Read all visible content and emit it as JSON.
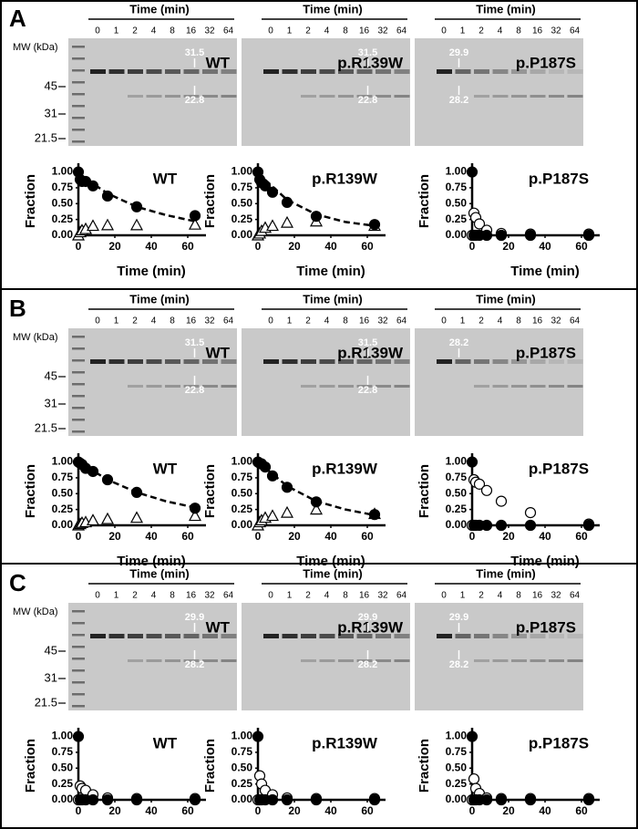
{
  "panels": [
    {
      "label": "A",
      "mw": {
        "title": "MW (kDa)",
        "markers": [
          "45",
          "31",
          "21.5"
        ]
      },
      "gels": [
        {
          "header": "Time (min)",
          "lanes": [
            "0",
            "1",
            "2",
            "4",
            "8",
            "16",
            "32",
            "64"
          ],
          "name": "WT",
          "bands": [
            "31.5",
            "22.8"
          ]
        },
        {
          "header": "Time (min)",
          "lanes": [
            "0",
            "1",
            "2",
            "4",
            "8",
            "16",
            "32",
            "64"
          ],
          "name": "p.R139W",
          "bands": [
            "31.5",
            "22.8"
          ]
        },
        {
          "header": "Time (min)",
          "lanes": [
            "0",
            "1",
            "2",
            "4",
            "8",
            "16",
            "32",
            "64"
          ],
          "name": "p.P187S",
          "bands": [
            "29.9",
            "28.2"
          ]
        }
      ]
    },
    {
      "label": "B",
      "mw": {
        "title": "MW (kDa)",
        "markers": [
          "45",
          "31",
          "21.5"
        ]
      },
      "gels": [
        {
          "header": "Time (min)",
          "lanes": [
            "0",
            "1",
            "2",
            "4",
            "8",
            "16",
            "32",
            "64"
          ],
          "name": "WT",
          "bands": [
            "31.5",
            "22.8"
          ]
        },
        {
          "header": "Time (min)",
          "lanes": [
            "0",
            "1",
            "2",
            "4",
            "8",
            "16",
            "32",
            "64"
          ],
          "name": "p.R139W",
          "bands": [
            "31.5",
            "22.8"
          ]
        },
        {
          "header": "Time (min)",
          "lanes": [
            "0",
            "1",
            "2",
            "4",
            "8",
            "16",
            "32",
            "64"
          ],
          "name": "p.P187S",
          "bands": [
            "28.2"
          ]
        }
      ]
    },
    {
      "label": "C",
      "mw": {
        "title": "MW (kDa)",
        "markers": [
          "45",
          "31",
          "21.5"
        ]
      },
      "gels": [
        {
          "header": "Time (min)",
          "lanes": [
            "0",
            "1",
            "2",
            "4",
            "8",
            "16",
            "32",
            "64"
          ],
          "name": "WT",
          "bands": [
            "29.9",
            "28.2"
          ]
        },
        {
          "header": "Time (min)",
          "lanes": [
            "0",
            "1",
            "2",
            "4",
            "8",
            "16",
            "32",
            "64"
          ],
          "name": "p.R139W",
          "bands": [
            "29.9",
            "28.2"
          ]
        },
        {
          "header": "Time (min)",
          "lanes": [
            "0",
            "1",
            "2",
            "4",
            "8",
            "16",
            "32",
            "64"
          ],
          "name": "p.P187S",
          "bands": [
            "29.9",
            "28.2"
          ]
        }
      ]
    }
  ],
  "chart_data": [
    {
      "type": "scatter",
      "title": "WT",
      "x_label": "Time (min)",
      "y_label": "Fraction",
      "xlim": [
        0,
        70
      ],
      "ylim": [
        0,
        1.08
      ],
      "xticks": [
        0,
        20,
        40,
        60
      ],
      "yticks": [
        {
          "value": 0,
          "label": "0.00"
        },
        {
          "value": 0.25,
          "label": "0.25"
        },
        {
          "value": 0.5,
          "label": "0.50"
        },
        {
          "value": 0.75,
          "label": "0.75"
        },
        {
          "value": 1,
          "label": "1.00"
        }
      ],
      "series": [
        {
          "line": "dashed",
          "color": "#000000",
          "x": [
            0,
            16,
            32,
            48,
            64
          ],
          "values": [
            0.97,
            0.66,
            0.45,
            0.32,
            0.22
          ]
        },
        {
          "marker": "open-triangle",
          "color": "#000000",
          "x": [
            0,
            1,
            2,
            4,
            8,
            16,
            32,
            64
          ],
          "values": [
            0.0,
            0.05,
            0.08,
            0.1,
            0.15,
            0.16,
            0.16,
            0.17
          ]
        },
        {
          "marker": "filled-circle",
          "color": "#000000",
          "x": [
            0,
            1,
            2,
            4,
            8,
            16,
            32,
            64
          ],
          "values": [
            1.0,
            0.88,
            0.85,
            0.85,
            0.78,
            0.62,
            0.45,
            0.31
          ]
        }
      ]
    },
    {
      "type": "scatter",
      "title": "p.R139W",
      "x_label": "Time (min)",
      "y_label": "Fraction",
      "xlim": [
        0,
        70
      ],
      "ylim": [
        0,
        1.08
      ],
      "xticks": [
        0,
        20,
        40,
        60
      ],
      "yticks": [
        {
          "value": 0,
          "label": "0.00"
        },
        {
          "value": 0.25,
          "label": "0.25"
        },
        {
          "value": 0.5,
          "label": "0.50"
        },
        {
          "value": 0.75,
          "label": "0.75"
        },
        {
          "value": 1,
          "label": "1.00"
        }
      ],
      "series": [
        {
          "line": "dashed",
          "color": "#000000",
          "x": [
            0,
            16,
            32,
            48,
            64
          ],
          "values": [
            0.98,
            0.56,
            0.33,
            0.21,
            0.15
          ]
        },
        {
          "marker": "open-triangle",
          "color": "#000000",
          "x": [
            0,
            1,
            2,
            4,
            8,
            16,
            32,
            64
          ],
          "values": [
            0.0,
            0.03,
            0.07,
            0.12,
            0.15,
            0.2,
            0.22,
            0.15
          ]
        },
        {
          "marker": "filled-circle",
          "color": "#000000",
          "x": [
            0,
            1,
            2,
            4,
            8,
            16,
            32,
            64
          ],
          "values": [
            1.0,
            0.88,
            0.83,
            0.78,
            0.68,
            0.52,
            0.3,
            0.17
          ]
        }
      ]
    },
    {
      "type": "scatter",
      "title": "p.P187S",
      "x_label": "Time (min)",
      "y_label": "Fraction",
      "xlim": [
        0,
        70
      ],
      "ylim": [
        0,
        1.08
      ],
      "xticks": [
        0,
        20,
        40,
        60
      ],
      "yticks": [
        {
          "value": 0,
          "label": "0.00"
        },
        {
          "value": 0.25,
          "label": "0.25"
        },
        {
          "value": 0.5,
          "label": "0.50"
        },
        {
          "value": 0.75,
          "label": "0.75"
        },
        {
          "value": 1,
          "label": "1.00"
        }
      ],
      "series": [
        {
          "marker": "open-circle",
          "color": "#000000",
          "x": [
            0,
            1,
            2,
            4,
            8,
            16,
            32,
            64
          ],
          "values": [
            0.0,
            0.35,
            0.28,
            0.18,
            0.08,
            0.03,
            0.02,
            0.02
          ]
        },
        {
          "marker": "filled-circle",
          "color": "#000000",
          "x": [
            0,
            1,
            2,
            4,
            8,
            16,
            32,
            64
          ],
          "values": [
            1.0,
            0.0,
            0.0,
            0.0,
            0.0,
            0.0,
            0.0,
            0.0
          ]
        }
      ]
    },
    {
      "type": "scatter",
      "title": "WT",
      "x_label": "Time (min)",
      "y_label": "Fraction",
      "xlim": [
        0,
        70
      ],
      "ylim": [
        0,
        1.08
      ],
      "xticks": [
        0,
        20,
        40,
        60
      ],
      "yticks": [
        {
          "value": 0,
          "label": "0.00"
        },
        {
          "value": 0.25,
          "label": "0.25"
        },
        {
          "value": 0.5,
          "label": "0.50"
        },
        {
          "value": 0.75,
          "label": "0.75"
        },
        {
          "value": 1,
          "label": "1.00"
        }
      ],
      "series": [
        {
          "line": "dashed",
          "color": "#000000",
          "x": [
            0,
            16,
            32,
            48,
            64
          ],
          "values": [
            1.0,
            0.72,
            0.52,
            0.38,
            0.28
          ]
        },
        {
          "marker": "open-triangle",
          "color": "#000000",
          "x": [
            0,
            1,
            2,
            4,
            8,
            16,
            32,
            64
          ],
          "values": [
            0.0,
            0.02,
            0.04,
            0.05,
            0.08,
            0.1,
            0.12,
            0.15
          ]
        },
        {
          "marker": "filled-circle",
          "color": "#000000",
          "x": [
            0,
            1,
            2,
            4,
            8,
            16,
            32,
            64
          ],
          "values": [
            1.0,
            0.98,
            0.96,
            0.9,
            0.85,
            0.72,
            0.52,
            0.27
          ]
        }
      ]
    },
    {
      "type": "scatter",
      "title": "p.R139W",
      "x_label": "Time (min)",
      "y_label": "Fraction",
      "xlim": [
        0,
        70
      ],
      "ylim": [
        0,
        1.08
      ],
      "xticks": [
        0,
        20,
        40,
        60
      ],
      "yticks": [
        {
          "value": 0,
          "label": "0.00"
        },
        {
          "value": 0.25,
          "label": "0.25"
        },
        {
          "value": 0.5,
          "label": "0.50"
        },
        {
          "value": 0.75,
          "label": "0.75"
        },
        {
          "value": 1,
          "label": "1.00"
        }
      ],
      "series": [
        {
          "line": "dashed",
          "color": "#000000",
          "x": [
            0,
            16,
            32,
            48,
            64
          ],
          "values": [
            1.0,
            0.62,
            0.38,
            0.25,
            0.16
          ]
        },
        {
          "marker": "open-triangle",
          "color": "#000000",
          "x": [
            0,
            1,
            2,
            4,
            8,
            16,
            32,
            64
          ],
          "values": [
            0.0,
            0.05,
            0.08,
            0.12,
            0.15,
            0.2,
            0.25,
            0.18
          ]
        },
        {
          "marker": "filled-circle",
          "color": "#000000",
          "x": [
            0,
            1,
            2,
            4,
            8,
            16,
            32,
            64
          ],
          "values": [
            1.0,
            0.98,
            0.97,
            0.92,
            0.78,
            0.6,
            0.37,
            0.17
          ]
        }
      ]
    },
    {
      "type": "scatter",
      "title": "p.P187S",
      "x_label": "Time (min)",
      "y_label": "Fraction",
      "xlim": [
        0,
        70
      ],
      "ylim": [
        0,
        1.08
      ],
      "xticks": [
        0,
        20,
        40,
        60
      ],
      "yticks": [
        {
          "value": 0,
          "label": "0.00"
        },
        {
          "value": 0.25,
          "label": "0.25"
        },
        {
          "value": 0.5,
          "label": "0.50"
        },
        {
          "value": 0.75,
          "label": "0.75"
        },
        {
          "value": 1,
          "label": "1.00"
        }
      ],
      "series": [
        {
          "marker": "open-circle",
          "color": "#000000",
          "x": [
            0,
            1,
            2,
            4,
            8,
            16,
            32,
            64
          ],
          "values": [
            0.0,
            0.72,
            0.68,
            0.65,
            0.55,
            0.38,
            0.2,
            0.02
          ]
        },
        {
          "marker": "filled-circle",
          "color": "#000000",
          "x": [
            0,
            1,
            2,
            4,
            8,
            16,
            32,
            64
          ],
          "values": [
            1.0,
            0.0,
            0.0,
            0.0,
            0.0,
            0.0,
            0.0,
            0.0
          ]
        }
      ]
    },
    {
      "type": "scatter",
      "title": "WT",
      "x_label": "Time (min)",
      "y_label": "Fraction",
      "xlim": [
        0,
        70
      ],
      "ylim": [
        0,
        1.08
      ],
      "xticks": [
        0,
        20,
        40,
        60
      ],
      "yticks": [
        {
          "value": 0,
          "label": "0.00"
        },
        {
          "value": 0.25,
          "label": "0.25"
        },
        {
          "value": 0.5,
          "label": "0.50"
        },
        {
          "value": 0.75,
          "label": "0.75"
        },
        {
          "value": 1,
          "label": "1.00"
        }
      ],
      "series": [
        {
          "marker": "open-circle",
          "color": "#000000",
          "x": [
            0,
            1,
            2,
            4,
            8,
            16,
            32,
            64
          ],
          "values": [
            0.0,
            0.22,
            0.18,
            0.15,
            0.08,
            0.03,
            0.02,
            0.02
          ]
        },
        {
          "marker": "filled-circle",
          "color": "#000000",
          "x": [
            0,
            1,
            2,
            4,
            8,
            16,
            32,
            64
          ],
          "values": [
            1.0,
            0.0,
            0.0,
            0.0,
            0.0,
            0.0,
            0.0,
            0.0
          ]
        }
      ]
    },
    {
      "type": "scatter",
      "title": "p.R139W",
      "x_label": "Time (min)",
      "y_label": "Fraction",
      "xlim": [
        0,
        70
      ],
      "ylim": [
        0,
        1.08
      ],
      "xticks": [
        0,
        20,
        40,
        60
      ],
      "yticks": [
        {
          "value": 0,
          "label": "0.00"
        },
        {
          "value": 0.25,
          "label": "0.25"
        },
        {
          "value": 0.5,
          "label": "0.50"
        },
        {
          "value": 0.75,
          "label": "0.75"
        },
        {
          "value": 1,
          "label": "1.00"
        }
      ],
      "series": [
        {
          "marker": "open-circle",
          "color": "#000000",
          "x": [
            0,
            1,
            2,
            4,
            8,
            16,
            32,
            64
          ],
          "values": [
            0.0,
            0.38,
            0.25,
            0.15,
            0.08,
            0.03,
            0.02,
            0.02
          ]
        },
        {
          "marker": "filled-circle",
          "color": "#000000",
          "x": [
            0,
            1,
            2,
            4,
            8,
            16,
            32,
            64
          ],
          "values": [
            1.0,
            0.0,
            0.0,
            0.0,
            0.0,
            0.0,
            0.0,
            0.0
          ]
        }
      ]
    },
    {
      "type": "scatter",
      "title": "p.P187S",
      "x_label": "Time (min)",
      "y_label": "Fraction",
      "xlim": [
        0,
        70
      ],
      "ylim": [
        0,
        1.08
      ],
      "xticks": [
        0,
        20,
        40,
        60
      ],
      "yticks": [
        {
          "value": 0,
          "label": "0.00"
        },
        {
          "value": 0.25,
          "label": "0.25"
        },
        {
          "value": 0.5,
          "label": "0.50"
        },
        {
          "value": 0.75,
          "label": "0.75"
        },
        {
          "value": 1,
          "label": "1.00"
        }
      ],
      "series": [
        {
          "marker": "open-circle",
          "color": "#000000",
          "x": [
            0,
            1,
            2,
            4,
            8,
            16,
            32,
            64
          ],
          "values": [
            0.0,
            0.33,
            0.18,
            0.1,
            0.03,
            0.02,
            0.02,
            0.02
          ]
        },
        {
          "marker": "filled-circle",
          "color": "#000000",
          "x": [
            0,
            1,
            2,
            4,
            8,
            16,
            32,
            64
          ],
          "values": [
            1.0,
            0.0,
            0.0,
            0.0,
            0.0,
            0.0,
            0.0,
            0.0
          ]
        }
      ]
    }
  ]
}
